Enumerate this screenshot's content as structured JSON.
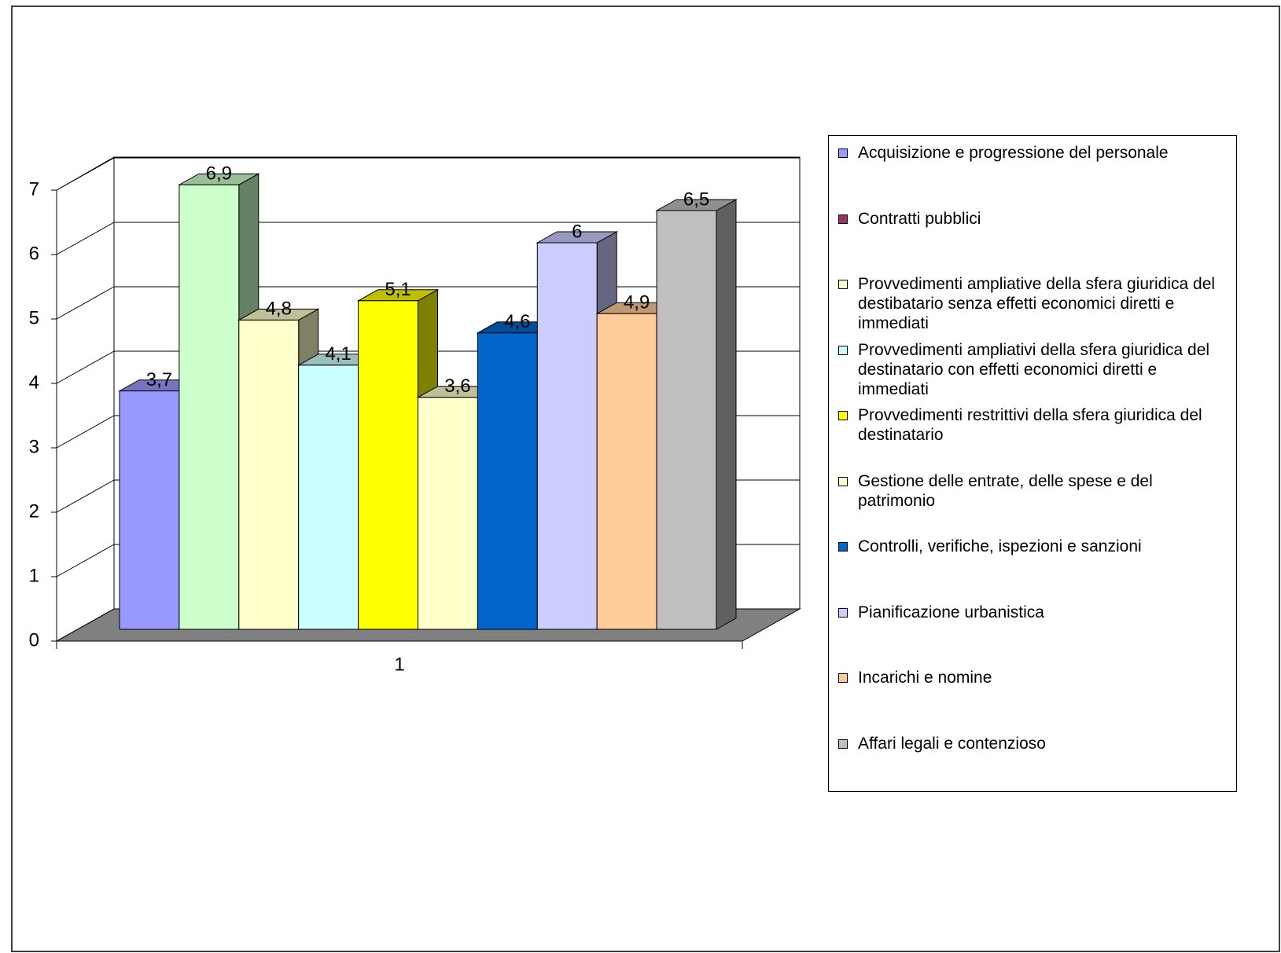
{
  "chart_data": {
    "type": "bar3d",
    "categories": [
      "1"
    ],
    "ylim": [
      0,
      7
    ],
    "yticks": [
      0,
      1,
      2,
      3,
      4,
      5,
      6,
      7
    ],
    "grid": true,
    "series": [
      {
        "name": "Acquisizione e progressione del personale",
        "color": "#9999ff",
        "legend_color": "#9999ff",
        "values": [
          3.7
        ],
        "value_labels": [
          "3,7"
        ]
      },
      {
        "name": "Contratti pubblici",
        "color": "#ccffcc",
        "legend_color": "#993366",
        "values": [
          6.9
        ],
        "value_labels": [
          "6,9"
        ]
      },
      {
        "name": "Provvedimenti ampliative della sfera giuridica del destibatario senza effetti economici diretti e immediati",
        "color": "#ffffcc",
        "legend_color": "#ffffcc",
        "values": [
          4.8
        ],
        "value_labels": [
          "4,8"
        ]
      },
      {
        "name": "Provvedimenti ampliativi della sfera giuridica del destinatario con effetti economici diretti e immediati",
        "color": "#ccffff",
        "legend_color": "#ccffff",
        "values": [
          4.1
        ],
        "value_labels": [
          "4,1"
        ]
      },
      {
        "name": "Provvedimenti restrittivi della sfera giuridica del destinatario",
        "color": "#ffff00",
        "legend_color": "#ffff00",
        "values": [
          5.1
        ],
        "value_labels": [
          "5,1"
        ]
      },
      {
        "name": "Gestione delle entrate, delle spese e del patrimonio",
        "color": "#ffffcc",
        "legend_color": "#ffffcc",
        "values": [
          3.6
        ],
        "value_labels": [
          "3,6"
        ]
      },
      {
        "name": "Controlli, verifiche, ispezioni e sanzioni",
        "color": "#0066cc",
        "legend_color": "#0066cc",
        "values": [
          4.6
        ],
        "value_labels": [
          "4,6"
        ]
      },
      {
        "name": "Pianificazione urbanistica",
        "color": "#ccccff",
        "legend_color": "#ccccff",
        "values": [
          6
        ],
        "value_labels": [
          "6"
        ]
      },
      {
        "name": "Incarichi e nomine",
        "color": "#ffcc99",
        "legend_color": "#ffcc99",
        "values": [
          4.9
        ],
        "value_labels": [
          "4,9"
        ]
      },
      {
        "name": "Affari legali e contenzioso",
        "color": "#c0c0c0",
        "legend_color": "#c0c0c0",
        "values": [
          6.5
        ],
        "value_labels": [
          "6,5"
        ]
      }
    ]
  }
}
